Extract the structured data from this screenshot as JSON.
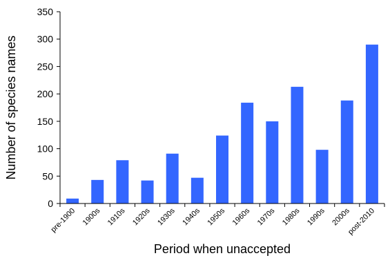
{
  "chart_data": {
    "type": "bar",
    "categories": [
      "pre-1900",
      "1900s",
      "1910s",
      "1920s",
      "1930s",
      "1940s",
      "1950s",
      "1960s",
      "1970s",
      "1980s",
      "1990s",
      "2000s",
      "post-2010"
    ],
    "values": [
      9,
      43,
      79,
      42,
      91,
      47,
      124,
      184,
      150,
      213,
      98,
      188,
      290
    ],
    "xlabel": "Period when unaccepted",
    "ylabel": "Number of species names",
    "ylim": [
      0,
      350
    ],
    "yticks": [
      0,
      50,
      100,
      150,
      200,
      250,
      300,
      350
    ],
    "grid": false,
    "legend": "none",
    "bar_color": "#3366ff"
  }
}
